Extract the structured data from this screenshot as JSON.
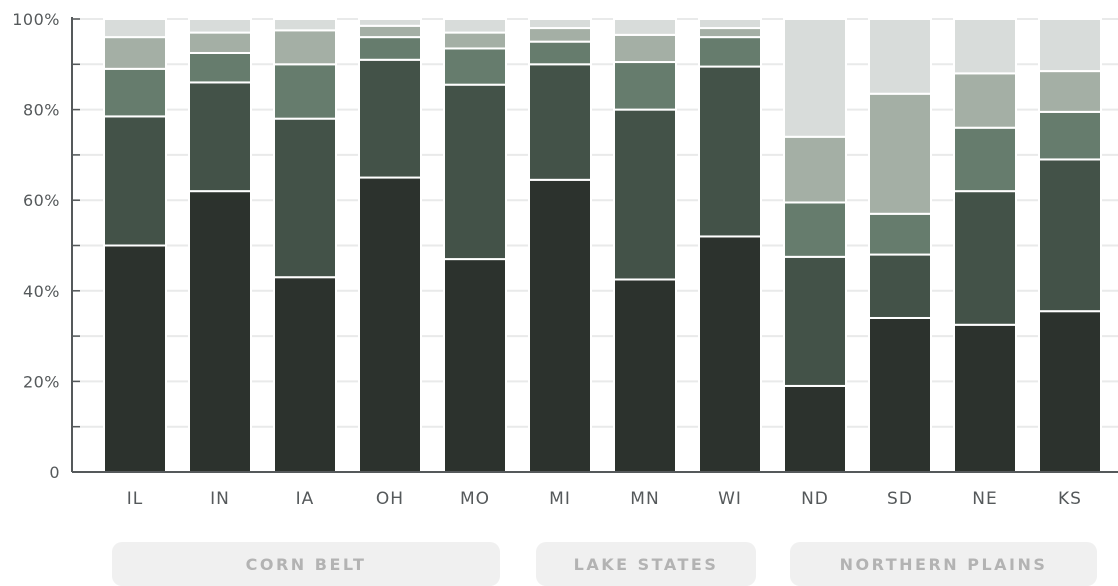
{
  "chart_data": {
    "type": "bar",
    "stacked": true,
    "normalized": true,
    "categories": [
      "IL",
      "IN",
      "IA",
      "OH",
      "MO",
      "MI",
      "MN",
      "WI",
      "ND",
      "SD",
      "NE",
      "KS"
    ],
    "series": [
      {
        "color": "#2c322d",
        "values": [
          50,
          62,
          43,
          65,
          47,
          64.5,
          42.5,
          52,
          19,
          34,
          32.5,
          35.5
        ]
      },
      {
        "color": "#435248",
        "values": [
          28.5,
          24,
          35,
          26,
          38.5,
          25.5,
          37.5,
          37.5,
          28.5,
          14,
          29.5,
          33.5
        ]
      },
      {
        "color": "#667c6d",
        "values": [
          10.5,
          6.5,
          12,
          5,
          8,
          5,
          10.5,
          6.5,
          12,
          9,
          14,
          10.5
        ]
      },
      {
        "color": "#a4afa5",
        "values": [
          7,
          4.5,
          7.5,
          2.5,
          3.5,
          3,
          6,
          2,
          14.5,
          26.5,
          12,
          9
        ]
      },
      {
        "color": "#d8dcda",
        "values": [
          4,
          3,
          2.5,
          1.5,
          3,
          2,
          3.5,
          2,
          26,
          16.5,
          12,
          11.5
        ]
      }
    ],
    "ylim": [
      0,
      100
    ],
    "yticks": [
      0,
      20,
      40,
      60,
      80,
      100
    ],
    "ytick_labels": [
      "0",
      "20%",
      "40%",
      "60%",
      "80%",
      "100%"
    ],
    "grid": true,
    "groups": [
      {
        "label": "CORN BELT",
        "categories": [
          "IL",
          "IN",
          "IA",
          "OH",
          "MO"
        ]
      },
      {
        "label": "LAKE STATES",
        "categories": [
          "MI",
          "MN",
          "WI"
        ]
      },
      {
        "label": "NORTHERN PLAINS",
        "categories": [
          "ND",
          "SD",
          "NE",
          "KS"
        ]
      }
    ]
  }
}
